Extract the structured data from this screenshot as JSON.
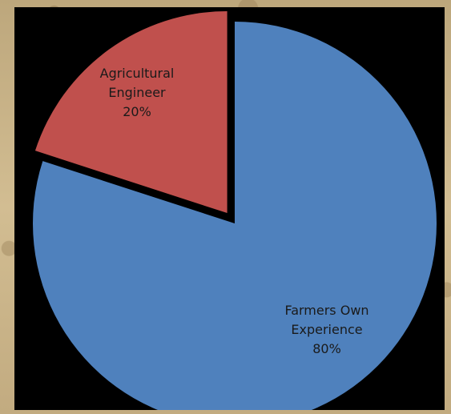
{
  "chart_data": {
    "type": "pie",
    "categories": [
      "Agricultural Engineer",
      "Farmers Own Experience"
    ],
    "values": [
      20,
      80
    ],
    "value_labels": [
      "20%",
      "80%"
    ],
    "label_lines": [
      [
        "Agricultural",
        "Engineer",
        "20%"
      ],
      [
        "Farmers Own",
        "Experience",
        "80%"
      ]
    ],
    "colors": [
      "#c0504d",
      "#4f81bd"
    ],
    "exploded": [
      true,
      false
    ],
    "title": "",
    "legend": "none"
  }
}
